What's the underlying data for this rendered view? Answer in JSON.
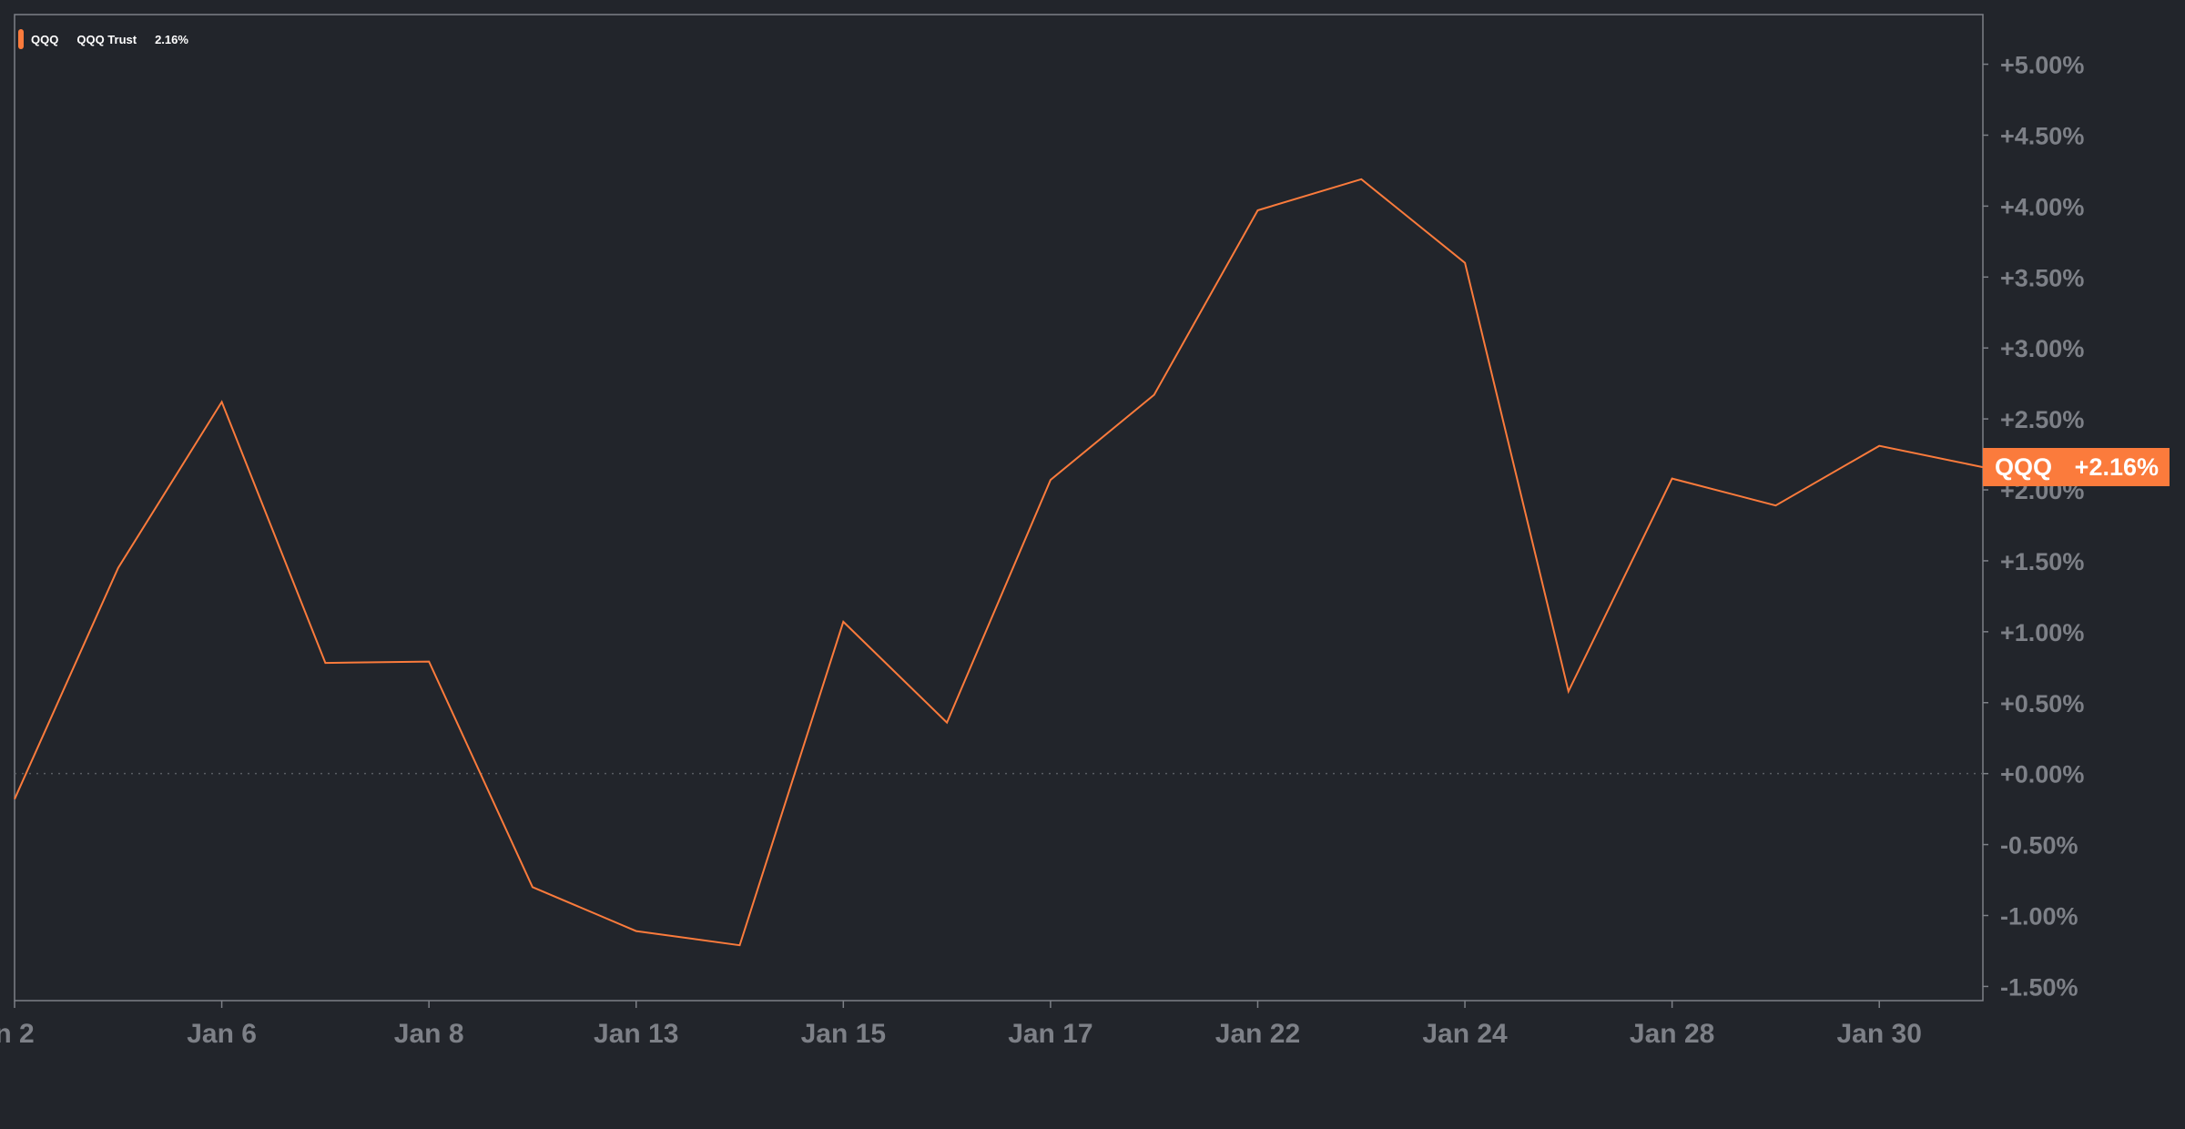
{
  "legend": {
    "symbol": "QQQ",
    "name": "QQQ Trust",
    "value": "2.16%"
  },
  "price_tag": {
    "symbol": "QQQ",
    "value": "+2.16%"
  },
  "colors": {
    "background": "#22252b",
    "line": "#fb7b3c",
    "frame": "#7d8087",
    "tick_text": "#7d8087",
    "zero_line": "#5a5d63"
  },
  "chart_data": {
    "type": "line",
    "title": "",
    "xlabel": "",
    "ylabel": "",
    "x_tick_labels": [
      "n 2",
      "Jan 6",
      "Jan 8",
      "Jan 13",
      "Jan 15",
      "Jan 17",
      "Jan 22",
      "Jan 24",
      "Jan 28",
      "Jan 30"
    ],
    "y_tick_labels": [
      "+5.00%",
      "+4.50%",
      "+4.00%",
      "+3.50%",
      "+3.00%",
      "+2.50%",
      "+2.00%",
      "+1.50%",
      "+1.00%",
      "+0.50%",
      "+0.00%",
      "-0.50%",
      "-1.00%",
      "-1.50%"
    ],
    "y_ticks": [
      5.0,
      4.5,
      4.0,
      3.5,
      3.0,
      2.5,
      2.0,
      1.5,
      1.0,
      0.5,
      0.0,
      -0.5,
      -1.0,
      -1.5
    ],
    "ylim": [
      -1.6,
      5.35
    ],
    "x_index_range": [
      0,
      19
    ],
    "x_tick_index": [
      0,
      2,
      4,
      6,
      8,
      10,
      12,
      14,
      16,
      18
    ],
    "series": [
      {
        "values": [
          -0.18,
          1.45,
          2.62,
          0.78,
          0.79,
          -0.8,
          -1.11,
          -1.21,
          1.07,
          0.36,
          2.07,
          2.67,
          3.97,
          4.19,
          3.6,
          0.58,
          2.08,
          1.89,
          2.31,
          2.16
        ]
      }
    ],
    "zero_line": true,
    "grid": false,
    "legend_position": "top-left"
  }
}
